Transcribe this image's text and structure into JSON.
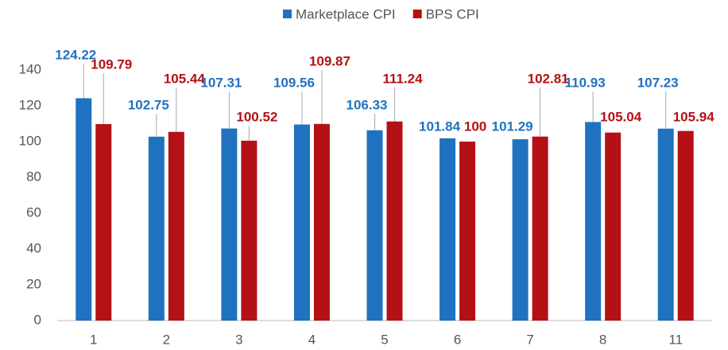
{
  "chart_data": {
    "type": "bar",
    "categories": [
      "1",
      "2",
      "3",
      "4",
      "5",
      "6",
      "7",
      "8",
      "11"
    ],
    "series": [
      {
        "name": "Marketplace CPI",
        "color": "#1f72c0",
        "values": [
          124.22,
          102.75,
          107.31,
          109.56,
          106.33,
          101.84,
          101.29,
          110.93,
          107.23
        ]
      },
      {
        "name": "BPS CPI",
        "color": "#b41116",
        "values": [
          109.79,
          105.44,
          100.52,
          109.87,
          111.24,
          100,
          102.81,
          105.04,
          105.94
        ]
      }
    ],
    "ylim": [
      0,
      140
    ],
    "yticks": [
      0,
      20,
      40,
      60,
      80,
      100,
      120,
      140
    ],
    "grid": false,
    "legend": "top"
  }
}
